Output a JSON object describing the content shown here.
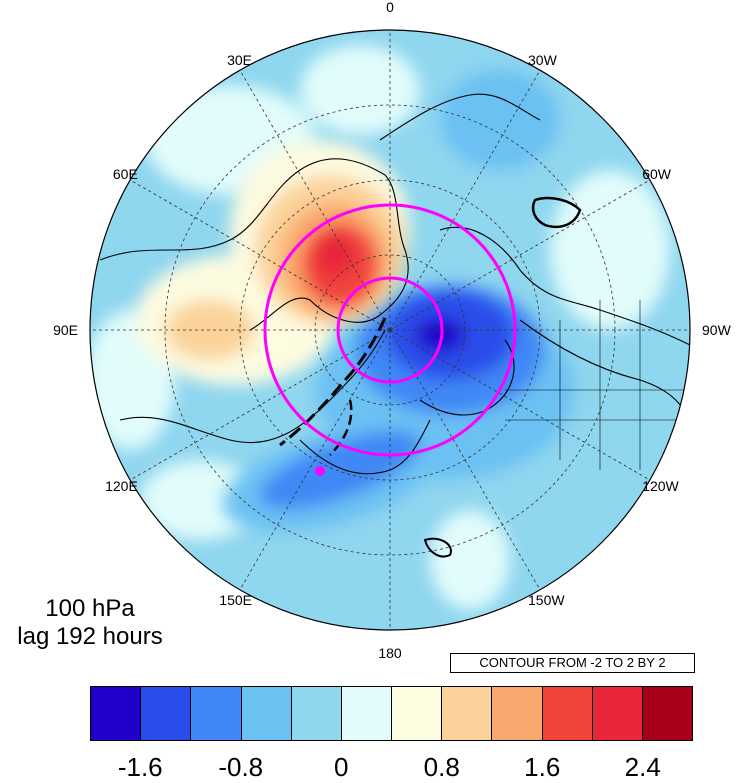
{
  "map": {
    "projection": "north-polar-stereographic",
    "background_color": "#8fd6ef",
    "longitude_labels": [
      "0",
      "30W",
      "60W",
      "90W",
      "120W",
      "150W",
      "180",
      "150E",
      "120E",
      "90E",
      "60E",
      "30E"
    ],
    "marker_color": "#ff00ff",
    "rings_color": "#ff00ff",
    "contour_color": "#000000"
  },
  "level_label": {
    "line1": "100 hPa",
    "line2": "lag 192 hours"
  },
  "contour_info": "CONTOUR FROM -2 TO 2 BY 2",
  "colorbar": {
    "colors": [
      "#2200cc",
      "#2a4dea",
      "#3f88f5",
      "#6cc1f3",
      "#8fd6ef",
      "#e1fcfb",
      "#fdfbe0",
      "#fbd39a",
      "#f9a86d",
      "#f2433c",
      "#e8283a",
      "#a8001c"
    ],
    "tick_labels": [
      "-1.6",
      "-0.8",
      "0",
      "0.8",
      "1.6",
      "2.4"
    ]
  }
}
